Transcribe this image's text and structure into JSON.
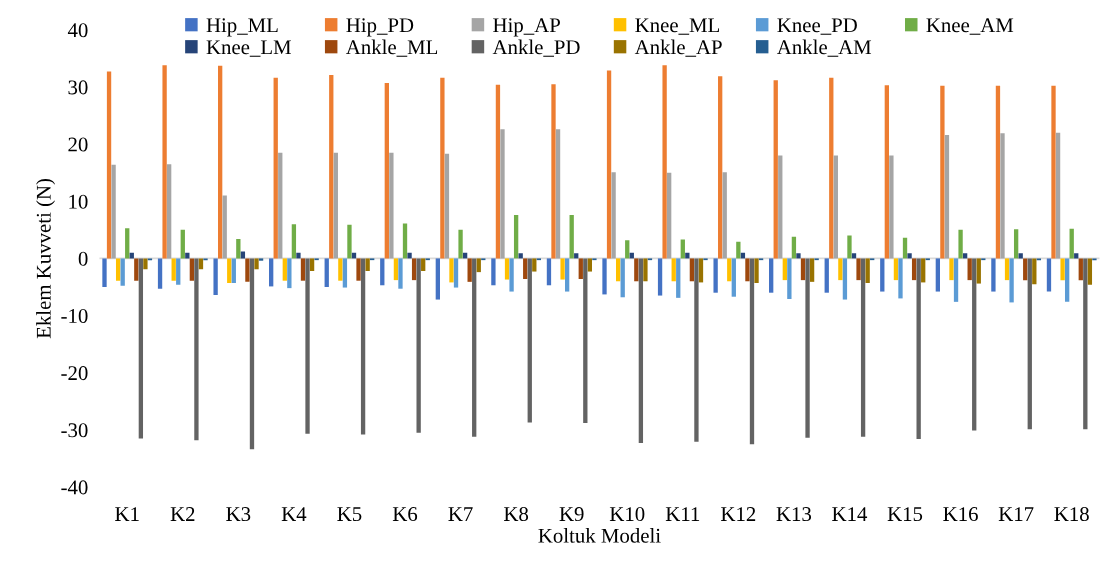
{
  "chart_data": {
    "type": "bar",
    "xlabel": "Koltuk Modeli",
    "ylabel": "Eklem Kuvveti (N)",
    "categories": [
      "K1",
      "K2",
      "K3",
      "K4",
      "K5",
      "K6",
      "K7",
      "K8",
      "K9",
      "K10",
      "K11",
      "K12",
      "K13",
      "K14",
      "K15",
      "K16",
      "K17",
      "K18"
    ],
    "ylim": [
      -40,
      40
    ],
    "yticks": [
      -40,
      -30,
      -20,
      -10,
      0,
      10,
      20,
      30,
      40
    ],
    "grid": false,
    "legend": "top",
    "ref_lines": [
      {
        "axis": "y",
        "value": 0,
        "color": "#d9d9d9"
      }
    ],
    "series": [
      {
        "name": "Hip_ML",
        "color": "#4472c4",
        "values": [
          -5.0,
          -5.3,
          -6.4,
          -4.9,
          -5.0,
          -4.7,
          -7.2,
          -4.7,
          -4.7,
          -6.3,
          -6.5,
          -6.0,
          -6.0,
          -6.0,
          -5.8,
          -5.8,
          -5.8,
          -5.8
        ]
      },
      {
        "name": "Hip_PD",
        "color": "#ed7d31",
        "values": [
          32.7,
          33.8,
          33.7,
          31.6,
          32.1,
          30.7,
          31.6,
          30.4,
          30.5,
          32.9,
          33.8,
          31.9,
          31.2,
          31.6,
          30.3,
          30.2,
          30.2,
          30.2
        ]
      },
      {
        "name": "Hip_AP",
        "color": "#a5a5a5",
        "values": [
          16.4,
          16.5,
          11.0,
          18.5,
          18.5,
          18.5,
          18.3,
          22.6,
          22.6,
          15.1,
          15.0,
          15.1,
          18.0,
          18.0,
          18.0,
          21.6,
          21.9,
          22.0
        ]
      },
      {
        "name": "Knee_ML",
        "color": "#ffc000",
        "values": [
          -3.9,
          -3.9,
          -4.3,
          -3.9,
          -3.9,
          -3.8,
          -4.2,
          -3.7,
          -3.7,
          -4.0,
          -4.0,
          -4.0,
          -3.8,
          -3.8,
          -3.8,
          -3.8,
          -3.8,
          -3.8
        ]
      },
      {
        "name": "Knee_PD",
        "color": "#5b9bd5",
        "values": [
          -4.8,
          -4.6,
          -4.3,
          -5.2,
          -5.1,
          -5.3,
          -5.1,
          -5.8,
          -5.8,
          -6.8,
          -6.9,
          -6.7,
          -7.1,
          -7.2,
          -7.0,
          -7.6,
          -7.7,
          -7.6
        ]
      },
      {
        "name": "Knee_AM",
        "color": "#70ad47",
        "values": [
          5.3,
          5.0,
          3.4,
          6.0,
          5.9,
          6.1,
          5.0,
          7.6,
          7.6,
          3.2,
          3.3,
          2.9,
          3.8,
          4.0,
          3.6,
          5.0,
          5.1,
          5.2
        ]
      },
      {
        "name": "Knee_LM",
        "color": "#264478",
        "values": [
          1.0,
          1.0,
          1.2,
          1.0,
          1.0,
          1.0,
          1.0,
          0.9,
          0.9,
          1.0,
          1.0,
          1.0,
          0.9,
          0.9,
          0.9,
          0.9,
          0.9,
          0.9
        ]
      },
      {
        "name": "Ankle_ML",
        "color": "#9e480e",
        "values": [
          -3.9,
          -3.9,
          -4.1,
          -3.9,
          -3.9,
          -3.8,
          -4.1,
          -3.6,
          -3.6,
          -4.0,
          -4.0,
          -4.0,
          -3.8,
          -3.8,
          -3.8,
          -3.8,
          -3.8,
          -3.8
        ]
      },
      {
        "name": "Ankle_PD",
        "color": "#636363",
        "values": [
          -31.5,
          -31.8,
          -33.4,
          -30.7,
          -30.8,
          -30.5,
          -31.2,
          -28.7,
          -28.8,
          -32.3,
          -32.1,
          -32.5,
          -31.4,
          -31.2,
          -31.6,
          -30.1,
          -29.9,
          -29.9
        ]
      },
      {
        "name": "Ankle_AP",
        "color": "#997300",
        "values": [
          -1.9,
          -1.9,
          -1.9,
          -2.2,
          -2.2,
          -2.2,
          -2.4,
          -2.3,
          -2.3,
          -4.0,
          -4.2,
          -4.3,
          -4.1,
          -4.3,
          -4.2,
          -4.4,
          -4.5,
          -4.6
        ]
      },
      {
        "name": "Ankle_AM",
        "color": "#255e91",
        "values": [
          -0.3,
          -0.3,
          -0.4,
          -0.3,
          -0.3,
          -0.3,
          -0.3,
          -0.3,
          -0.3,
          -0.3,
          -0.3,
          -0.3,
          -0.3,
          -0.3,
          -0.3,
          -0.3,
          -0.3,
          -0.3
        ]
      }
    ]
  }
}
